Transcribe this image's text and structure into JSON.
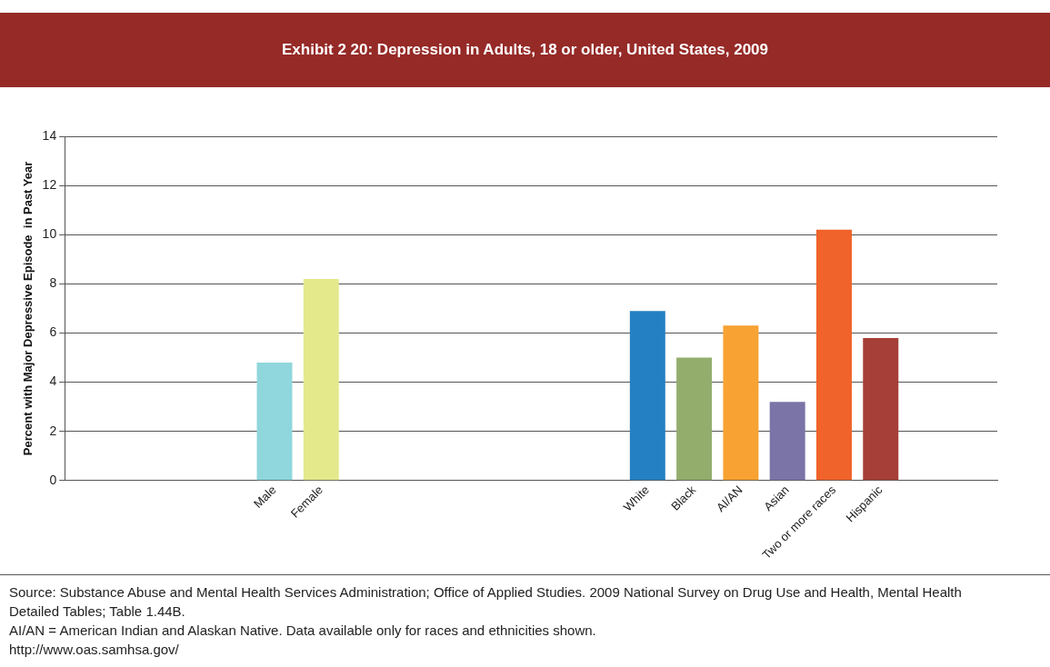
{
  "chart_data": {
    "type": "bar",
    "title": "Exhibit 2 20: Depression in Adults, 18 or older, United States, 2009",
    "ylabel": "Percent with Major Depressive Episode  in Past Year",
    "categories": [
      null,
      null,
      null,
      null,
      "Male",
      "Female",
      null,
      null,
      null,
      null,
      null,
      null,
      "White",
      "Black",
      "AI/AN",
      "Asian",
      "Two or more races",
      "Hispanic",
      null,
      null
    ],
    "values": [
      null,
      null,
      null,
      null,
      4.8,
      8.2,
      null,
      null,
      null,
      null,
      null,
      null,
      6.9,
      5.0,
      6.3,
      3.2,
      10.2,
      5.8,
      null,
      null
    ],
    "colors": [
      "#8fd7dc",
      "#8fd7dc",
      "#8fd7dc",
      "#8fd7dc",
      "#8fd7dc",
      "#e4e98c",
      "#8fd7dc",
      "#8fd7dc",
      "#8fd7dc",
      "#8fd7dc",
      "#8fd7dc",
      "#8fd7dc",
      "#2580c3",
      "#93ad6d",
      "#f8a233",
      "#7b74a7",
      "#f0632a",
      "#a53f37",
      "#8fd7dc",
      "#8fd7dc"
    ],
    "ylim": [
      0,
      14
    ],
    "yticks": [
      0,
      2,
      4,
      6,
      8,
      10,
      12,
      14
    ],
    "grid": "y",
    "legend": false,
    "annotations": [
      "Source: Substance Abuse and Mental Health Services Administration; Office of Applied Studies. 2009 National Survey on Drug Use and Health, Mental Health Detailed Tables; Table 1.44B.",
      "AI/AN = American Indian and Alaskan Native. Data available only for races and ethnicities shown.",
      "http://www.oas.samhsa.gov/"
    ]
  }
}
